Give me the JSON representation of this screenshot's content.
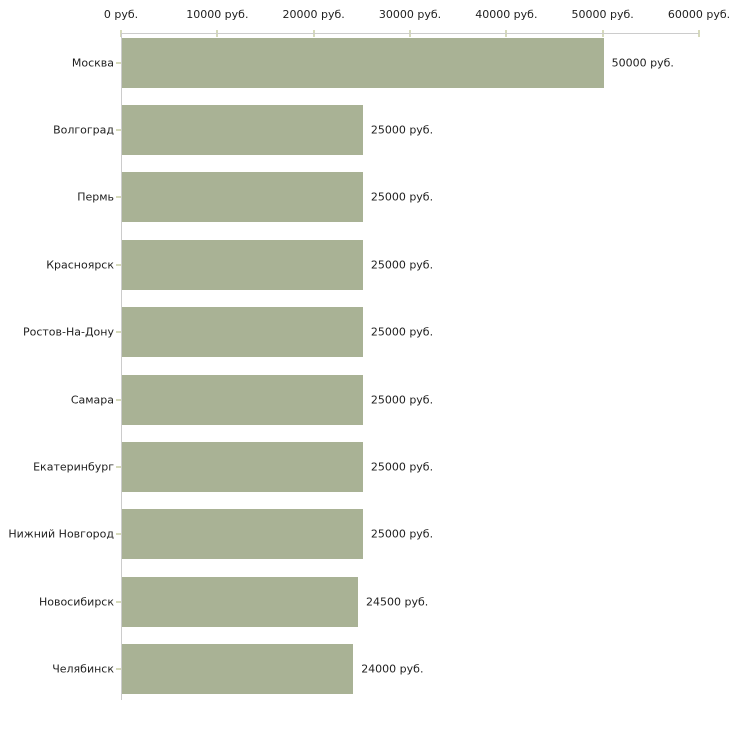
{
  "chart_data": {
    "type": "bar",
    "orientation": "horizontal",
    "title": "",
    "xlabel": "",
    "ylabel": "",
    "categories": [
      "Москва",
      "Волгоград",
      "Пермь",
      "Красноярск",
      "Ростов-На-Дону",
      "Самара",
      "Екатеринбург",
      "Нижний Новгород",
      "Новосибирск",
      "Челябинск"
    ],
    "values": [
      50000,
      25000,
      25000,
      25000,
      25000,
      25000,
      25000,
      25000,
      24500,
      24000
    ],
    "value_labels": [
      "50000 руб.",
      "25000 руб.",
      "25000 руб.",
      "25000 руб.",
      "25000 руб.",
      "25000 руб.",
      "25000 руб.",
      "25000 руб.",
      "24500 руб.",
      "24000 руб."
    ],
    "xlim": [
      0,
      60000
    ],
    "x_ticks": [
      0,
      10000,
      20000,
      30000,
      40000,
      50000,
      60000
    ],
    "x_tick_labels": [
      "0 руб.",
      "10000 руб.",
      "20000 руб.",
      "30000 руб.",
      "40000 руб.",
      "50000 руб.",
      "60000 руб."
    ],
    "grid": false,
    "legend": false,
    "colors": {
      "bar": "#a9b295",
      "axis_line": "#cccccc",
      "tick_mark": "#d6dabb",
      "text": "#1f1f1f",
      "background": "#ffffff"
    }
  }
}
